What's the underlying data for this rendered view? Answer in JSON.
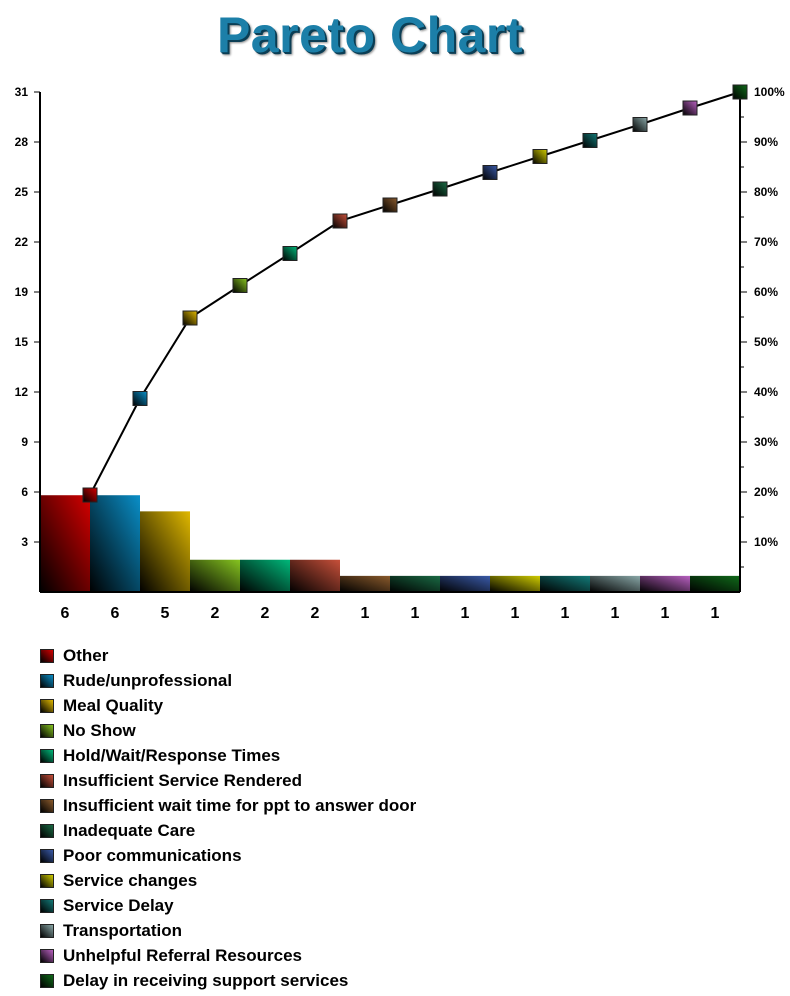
{
  "title": "Pareto Chart",
  "chart_data": {
    "type": "bar",
    "categories": [
      "Other",
      "Rude/unprofessional",
      "Meal Quality",
      "No Show",
      "Hold/Wait/Response Times",
      "Insufficient Service Rendered",
      "Insufficient wait time for ppt to answer door",
      "Inadequate Care",
      "Poor communications",
      "Service changes",
      "Service Delay",
      "Transportation",
      "Unhelpful Referral Resources",
      "Delay in receiving support services"
    ],
    "values": [
      6,
      6,
      5,
      2,
      2,
      2,
      1,
      1,
      1,
      1,
      1,
      1,
      1,
      1
    ],
    "value_labels": [
      "6",
      "6",
      "5",
      "2",
      "2",
      "2",
      "1",
      "1",
      "1",
      "1",
      "1",
      "1",
      "1",
      "1"
    ],
    "colors": [
      "#d40000",
      "#0a8fc8",
      "#e0b800",
      "#86c420",
      "#00b87a",
      "#c8503a",
      "#8a5a2c",
      "#1a6a44",
      "#3a5aa8",
      "#d0cc00",
      "#137a78",
      "#8aa8a8",
      "#b860c0",
      "#106a1a"
    ],
    "series": [
      {
        "name": "",
        "type": "bar",
        "values": [
          6,
          6,
          5,
          2,
          2,
          2,
          1,
          1,
          1,
          1,
          1,
          1,
          1,
          1
        ]
      },
      {
        "name": "",
        "type": "line",
        "values": [
          19.4,
          38.7,
          54.8,
          61.3,
          67.7,
          74.2,
          77.4,
          80.6,
          83.9,
          87.1,
          90.3,
          93.5,
          96.8,
          100
        ]
      }
    ],
    "ylim": [
      0,
      31
    ],
    "yticks": [
      "3",
      "6",
      "9",
      "12",
      "15",
      "19",
      "22",
      "25",
      "28",
      "31"
    ],
    "y2lim": [
      0,
      100
    ],
    "y2ticks": [
      "10%",
      "20%",
      "30%",
      "40%",
      "50%",
      "60%",
      "70%",
      "80%",
      "90%",
      "100%"
    ],
    "legend_position": "bottom-left",
    "grid": false
  }
}
